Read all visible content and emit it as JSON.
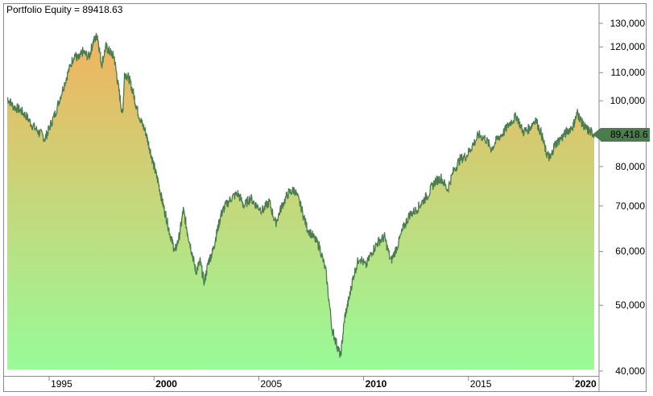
{
  "title": "Portfolio Equity = 89418.63",
  "last_value_label": "89,418.6",
  "colors": {
    "line": "#4a7c4e",
    "fill_top": "#f2b35e",
    "fill_bottom": "#98fb98",
    "axis": "#8a8a8a",
    "tag_bg": "#4a7c4e"
  },
  "y_axis": {
    "scale": "log",
    "ticks": [
      "130,000",
      "120,000",
      "110,000",
      "100,000",
      "80,000",
      "70,000",
      "60,000",
      "50,000",
      "40,000"
    ],
    "tick_values": [
      130000,
      120000,
      110000,
      100000,
      80000,
      70000,
      60000,
      50000,
      40000
    ]
  },
  "x_axis": {
    "ticks": [
      {
        "label": "1995",
        "bold": false
      },
      {
        "label": "2000",
        "bold": true
      },
      {
        "label": "2005",
        "bold": false
      },
      {
        "label": "2010",
        "bold": true
      },
      {
        "label": "2015",
        "bold": false
      },
      {
        "label": "2020",
        "bold": true
      }
    ]
  },
  "chart_data": {
    "type": "area",
    "title": "Portfolio Equity = 89418.63",
    "xlabel": "",
    "ylabel": "",
    "yscale": "log",
    "ylim": [
      40000,
      135000
    ],
    "xlim": [
      1993.0,
      2021.0
    ],
    "grid": false,
    "last_value": 89418.63,
    "series": [
      {
        "name": "Portfolio Equity",
        "x": [
          1993.0,
          1993.3,
          1993.6,
          1993.9,
          1994.2,
          1994.5,
          1994.8,
          1995.0,
          1995.3,
          1995.6,
          1995.9,
          1996.2,
          1996.4,
          1996.6,
          1996.9,
          1997.1,
          1997.3,
          1997.5,
          1997.7,
          1997.9,
          1998.1,
          1998.3,
          1998.5,
          1998.6,
          1998.8,
          1999.0,
          1999.2,
          1999.4,
          1999.6,
          1999.8,
          2000.0,
          2000.2,
          2000.4,
          2000.6,
          2000.8,
          2001.0,
          2001.2,
          2001.4,
          2001.6,
          2001.8,
          2002.0,
          2002.2,
          2002.4,
          2002.6,
          2002.8,
          2003.0,
          2003.2,
          2003.4,
          2003.7,
          2004.0,
          2004.3,
          2004.6,
          2004.9,
          2005.2,
          2005.5,
          2005.8,
          2006.1,
          2006.4,
          2006.7,
          2007.0,
          2007.3,
          2007.6,
          2007.9,
          2008.2,
          2008.5,
          2008.7,
          2008.9,
          2009.1,
          2009.3,
          2009.5,
          2009.8,
          2010.1,
          2010.4,
          2010.7,
          2011.0,
          2011.3,
          2011.6,
          2011.9,
          2012.2,
          2012.5,
          2012.8,
          2013.1,
          2013.4,
          2013.7,
          2014.0,
          2014.3,
          2014.6,
          2014.9,
          2015.2,
          2015.5,
          2015.8,
          2016.1,
          2016.4,
          2016.7,
          2017.0,
          2017.3,
          2017.6,
          2017.9,
          2018.2,
          2018.5,
          2018.7,
          2018.9,
          2019.1,
          2019.4,
          2019.7,
          2020.0,
          2020.2,
          2020.4,
          2020.6,
          2020.8,
          2021.0
        ],
        "values": [
          101000,
          98000,
          97000,
          95000,
          92000,
          90000,
          88000,
          91000,
          96000,
          103000,
          110000,
          117000,
          115000,
          118000,
          116000,
          122000,
          125000,
          113000,
          120000,
          118000,
          116000,
          105000,
          95000,
          110000,
          108000,
          103000,
          97000,
          93000,
          90000,
          85000,
          80000,
          76000,
          71000,
          67000,
          63000,
          60000,
          63000,
          69000,
          64000,
          60000,
          56000,
          58000,
          54000,
          58000,
          60000,
          64000,
          68000,
          70000,
          72000,
          73000,
          70000,
          72000,
          70000,
          69000,
          71000,
          66000,
          70000,
          73000,
          74000,
          70000,
          65000,
          63000,
          61000,
          56000,
          46000,
          44000,
          42000,
          48000,
          51000,
          55000,
          59000,
          57000,
          60000,
          62000,
          63000,
          58000,
          61000,
          65000,
          68000,
          69000,
          71000,
          73000,
          76000,
          77000,
          74000,
          79000,
          82000,
          83000,
          86000,
          89000,
          88000,
          85000,
          88000,
          90000,
          93000,
          95000,
          90000,
          91000,
          94000,
          89000,
          84000,
          82000,
          86000,
          88000,
          90000,
          92000,
          96000,
          93000,
          91000,
          90000,
          89418
        ]
      }
    ]
  }
}
